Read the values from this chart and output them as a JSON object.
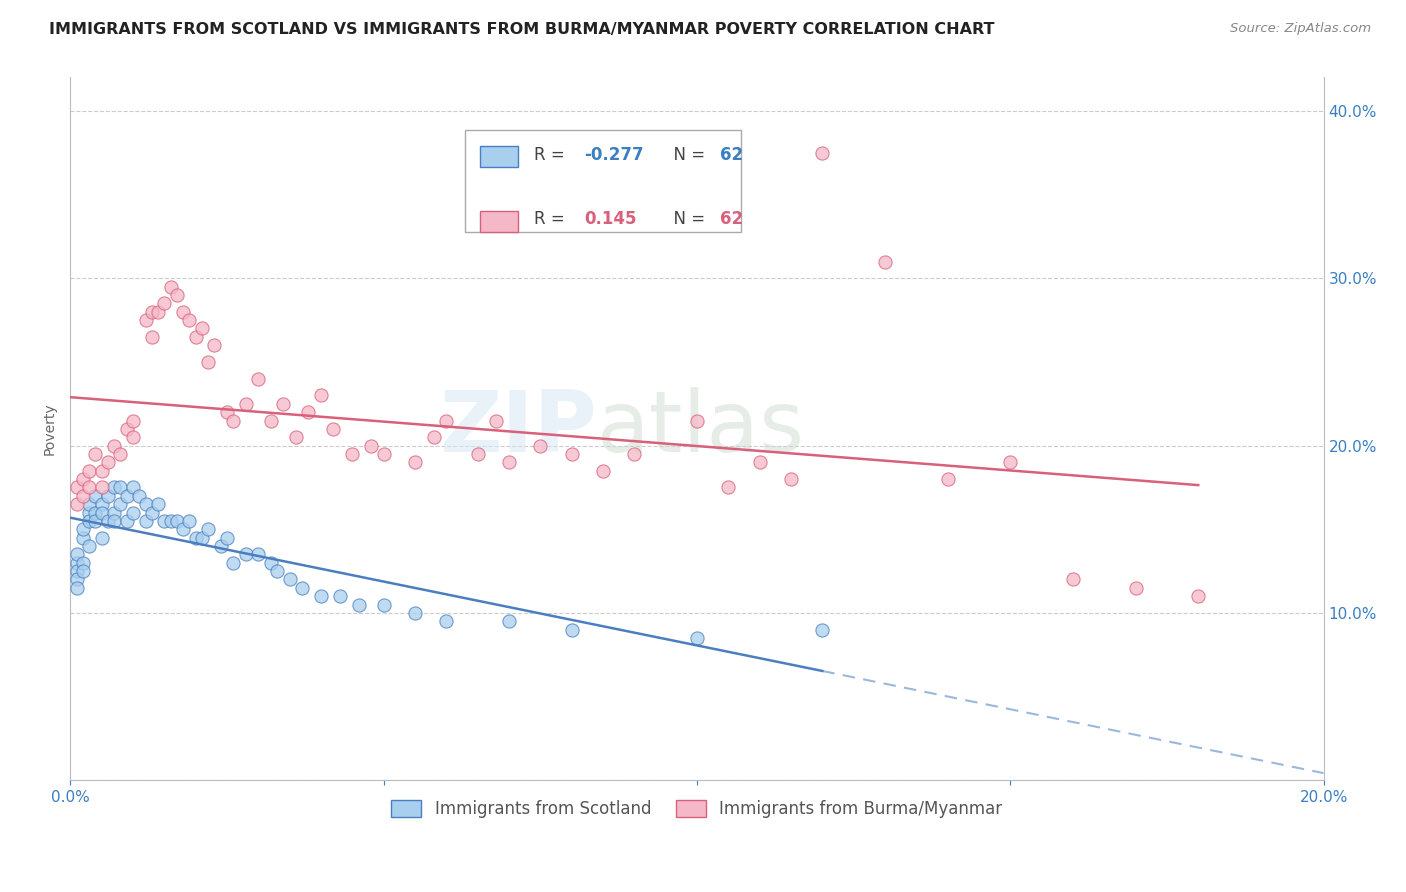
{
  "title": "IMMIGRANTS FROM SCOTLAND VS IMMIGRANTS FROM BURMA/MYANMAR POVERTY CORRELATION CHART",
  "source": "Source: ZipAtlas.com",
  "ylabel": "Poverty",
  "xlim": [
    0.0,
    0.2
  ],
  "ylim": [
    0.0,
    0.42
  ],
  "xticks": [
    0.0,
    0.05,
    0.1,
    0.15,
    0.2
  ],
  "yticks": [
    0.0,
    0.1,
    0.2,
    0.3,
    0.4
  ],
  "xticklabels": [
    "0.0%",
    "",
    "",
    "",
    "20.0%"
  ],
  "yticklabels_right": [
    "",
    "10.0%",
    "20.0%",
    "30.0%",
    "40.0%"
  ],
  "scotland_color": "#A8CFEE",
  "burma_color": "#F5B8C8",
  "scotland_line_color": "#4A7EC0",
  "burma_line_color": "#D8607A",
  "scotland_R": -0.277,
  "scotland_N": 62,
  "burma_R": 0.145,
  "burma_N": 62,
  "scotland_x": [
    0.001,
    0.001,
    0.001,
    0.001,
    0.001,
    0.002,
    0.002,
    0.002,
    0.002,
    0.003,
    0.003,
    0.003,
    0.003,
    0.004,
    0.004,
    0.004,
    0.005,
    0.005,
    0.005,
    0.006,
    0.006,
    0.007,
    0.007,
    0.007,
    0.008,
    0.008,
    0.009,
    0.009,
    0.01,
    0.01,
    0.011,
    0.012,
    0.012,
    0.013,
    0.014,
    0.015,
    0.016,
    0.017,
    0.018,
    0.019,
    0.02,
    0.021,
    0.022,
    0.024,
    0.025,
    0.026,
    0.028,
    0.03,
    0.032,
    0.033,
    0.035,
    0.037,
    0.04,
    0.043,
    0.046,
    0.05,
    0.055,
    0.06,
    0.07,
    0.08,
    0.1,
    0.12
  ],
  "scotland_y": [
    0.13,
    0.125,
    0.135,
    0.12,
    0.115,
    0.145,
    0.15,
    0.13,
    0.125,
    0.16,
    0.165,
    0.155,
    0.14,
    0.17,
    0.16,
    0.155,
    0.165,
    0.16,
    0.145,
    0.17,
    0.155,
    0.175,
    0.16,
    0.155,
    0.175,
    0.165,
    0.17,
    0.155,
    0.16,
    0.175,
    0.17,
    0.165,
    0.155,
    0.16,
    0.165,
    0.155,
    0.155,
    0.155,
    0.15,
    0.155,
    0.145,
    0.145,
    0.15,
    0.14,
    0.145,
    0.13,
    0.135,
    0.135,
    0.13,
    0.125,
    0.12,
    0.115,
    0.11,
    0.11,
    0.105,
    0.105,
    0.1,
    0.095,
    0.095,
    0.09,
    0.085,
    0.09
  ],
  "burma_x": [
    0.001,
    0.001,
    0.002,
    0.002,
    0.003,
    0.003,
    0.004,
    0.005,
    0.005,
    0.006,
    0.007,
    0.008,
    0.009,
    0.01,
    0.01,
    0.012,
    0.013,
    0.013,
    0.014,
    0.015,
    0.016,
    0.017,
    0.018,
    0.019,
    0.02,
    0.021,
    0.022,
    0.023,
    0.025,
    0.026,
    0.028,
    0.03,
    0.032,
    0.034,
    0.036,
    0.038,
    0.04,
    0.042,
    0.045,
    0.048,
    0.05,
    0.055,
    0.058,
    0.06,
    0.065,
    0.068,
    0.07,
    0.075,
    0.08,
    0.085,
    0.09,
    0.1,
    0.105,
    0.11,
    0.115,
    0.12,
    0.13,
    0.14,
    0.15,
    0.16,
    0.17,
    0.18
  ],
  "burma_y": [
    0.175,
    0.165,
    0.18,
    0.17,
    0.185,
    0.175,
    0.195,
    0.185,
    0.175,
    0.19,
    0.2,
    0.195,
    0.21,
    0.215,
    0.205,
    0.275,
    0.28,
    0.265,
    0.28,
    0.285,
    0.295,
    0.29,
    0.28,
    0.275,
    0.265,
    0.27,
    0.25,
    0.26,
    0.22,
    0.215,
    0.225,
    0.24,
    0.215,
    0.225,
    0.205,
    0.22,
    0.23,
    0.21,
    0.195,
    0.2,
    0.195,
    0.19,
    0.205,
    0.215,
    0.195,
    0.215,
    0.19,
    0.2,
    0.195,
    0.185,
    0.195,
    0.215,
    0.175,
    0.19,
    0.18,
    0.375,
    0.31,
    0.18,
    0.19,
    0.12,
    0.115,
    0.11
  ],
  "watermark_zip": "ZIP",
  "watermark_atlas": "atlas",
  "background_color": "#FFFFFF",
  "grid_color": "#CCCCCC",
  "title_fontsize": 11.5,
  "axis_label_fontsize": 10,
  "tick_fontsize": 11,
  "legend_fontsize": 12
}
